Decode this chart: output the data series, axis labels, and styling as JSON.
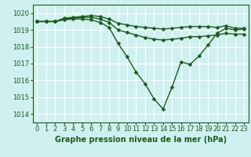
{
  "background_color": "#cff0f0",
  "grid_color": "#ffffff",
  "line_color": "#1a5c1a",
  "marker": "D",
  "markersize": 2.5,
  "linewidth": 1.0,
  "xlabel": "Graphe pression niveau de la mer (hPa)",
  "xlabel_fontsize": 7,
  "tick_fontsize": 6,
  "ylim": [
    1013.5,
    1020.5
  ],
  "yticks": [
    1014,
    1015,
    1016,
    1017,
    1018,
    1019,
    1020
  ],
  "xticks": [
    0,
    1,
    2,
    3,
    4,
    5,
    6,
    7,
    8,
    9,
    10,
    11,
    12,
    13,
    14,
    15,
    16,
    17,
    18,
    19,
    20,
    21,
    22,
    23
  ],
  "series": [
    [
      1019.5,
      1019.5,
      1019.5,
      1019.7,
      1019.75,
      1019.8,
      1019.85,
      1019.8,
      1019.65,
      1019.4,
      1019.3,
      1019.2,
      1019.15,
      1019.1,
      1019.05,
      1019.1,
      1019.15,
      1019.2,
      1019.2,
      1019.2,
      1019.15,
      1019.25,
      1019.1,
      1019.1
    ],
    [
      1019.5,
      1019.5,
      1019.5,
      1019.65,
      1019.7,
      1019.75,
      1019.75,
      1019.65,
      1019.45,
      1019.0,
      1018.85,
      1018.7,
      1018.55,
      1018.45,
      1018.4,
      1018.45,
      1018.5,
      1018.6,
      1018.6,
      1018.65,
      1018.7,
      1018.8,
      1018.75,
      1018.75
    ],
    [
      1019.5,
      1019.5,
      1019.5,
      1019.6,
      1019.65,
      1019.65,
      1019.6,
      1019.45,
      1019.15,
      1018.2,
      1017.4,
      1016.5,
      1015.8,
      1014.9,
      1014.3,
      1015.6,
      1017.1,
      1016.95,
      1017.45,
      1018.1,
      1018.8,
      1019.1,
      1019.0,
      1019.05
    ]
  ]
}
